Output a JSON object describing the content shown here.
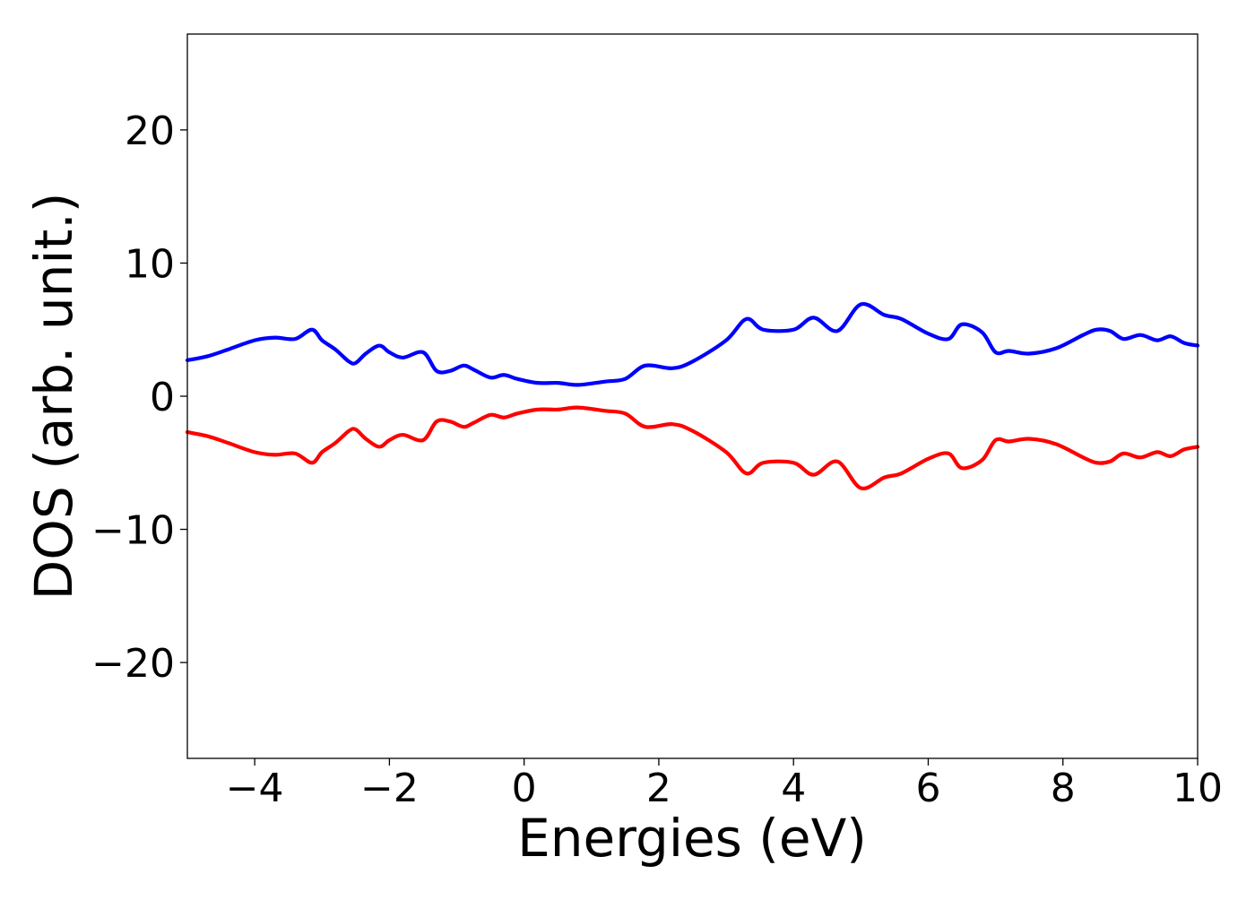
{
  "chart_data": {
    "type": "line",
    "xlabel": "Energies (eV)",
    "ylabel": "DOS (arb. unit.)",
    "xlim": [
      -5,
      10
    ],
    "ylim": [
      -27.2,
      27.2
    ],
    "xticks": [
      -4,
      -2,
      0,
      2,
      4,
      6,
      8,
      10
    ],
    "yticks": [
      -20,
      -10,
      0,
      10,
      20
    ],
    "xtick_labels": [
      "−4",
      "−2",
      "0",
      "2",
      "4",
      "6",
      "8",
      "10"
    ],
    "ytick_labels": [
      "−20",
      "−10",
      "0",
      "10",
      "20"
    ],
    "grid": false,
    "legend": "none",
    "series": [
      {
        "color": "#0000ff",
        "x": [
          -5.0,
          -4.7,
          -4.4,
          -4.0,
          -3.7,
          -3.4,
          -3.15,
          -3.0,
          -2.8,
          -2.6,
          -2.5,
          -2.35,
          -2.15,
          -2.0,
          -1.8,
          -1.5,
          -1.3,
          -1.1,
          -0.9,
          -0.75,
          -0.5,
          -0.3,
          -0.1,
          0.2,
          0.5,
          0.8,
          1.2,
          1.5,
          1.8,
          2.2,
          2.5,
          3.0,
          3.3,
          3.55,
          4.0,
          4.3,
          4.65,
          5.0,
          5.35,
          5.6,
          6.0,
          6.3,
          6.5,
          6.8,
          7.0,
          7.2,
          7.5,
          7.9,
          8.3,
          8.5,
          8.7,
          8.9,
          9.15,
          9.4,
          9.6,
          9.8,
          10.0
        ],
        "y": [
          2.7,
          3.0,
          3.5,
          4.2,
          4.4,
          4.3,
          5.0,
          4.2,
          3.5,
          2.6,
          2.5,
          3.2,
          3.8,
          3.3,
          2.9,
          3.3,
          1.9,
          1.9,
          2.3,
          2.0,
          1.4,
          1.6,
          1.3,
          1.0,
          1.0,
          0.85,
          1.1,
          1.3,
          2.3,
          2.1,
          2.6,
          4.2,
          5.8,
          5.0,
          5.0,
          5.9,
          4.9,
          6.9,
          6.1,
          5.8,
          4.7,
          4.3,
          5.4,
          4.8,
          3.3,
          3.4,
          3.2,
          3.6,
          4.6,
          5.0,
          4.9,
          4.3,
          4.6,
          4.2,
          4.5,
          4.0,
          3.8
        ]
      },
      {
        "color": "#ff0000",
        "x": [
          -5.0,
          -4.7,
          -4.4,
          -4.0,
          -3.7,
          -3.4,
          -3.15,
          -3.0,
          -2.8,
          -2.6,
          -2.5,
          -2.35,
          -2.15,
          -2.0,
          -1.8,
          -1.5,
          -1.3,
          -1.1,
          -0.9,
          -0.75,
          -0.5,
          -0.3,
          -0.1,
          0.2,
          0.5,
          0.8,
          1.2,
          1.5,
          1.8,
          2.2,
          2.5,
          3.0,
          3.3,
          3.55,
          4.0,
          4.3,
          4.65,
          5.0,
          5.35,
          5.6,
          6.0,
          6.3,
          6.5,
          6.8,
          7.0,
          7.2,
          7.5,
          7.9,
          8.3,
          8.5,
          8.7,
          8.9,
          9.15,
          9.4,
          9.6,
          9.8,
          10.0
        ],
        "y": [
          -2.7,
          -3.0,
          -3.5,
          -4.2,
          -4.4,
          -4.3,
          -5.0,
          -4.2,
          -3.5,
          -2.6,
          -2.5,
          -3.2,
          -3.8,
          -3.3,
          -2.9,
          -3.3,
          -1.9,
          -1.9,
          -2.3,
          -2.0,
          -1.4,
          -1.6,
          -1.3,
          -1.0,
          -1.0,
          -0.85,
          -1.1,
          -1.3,
          -2.3,
          -2.1,
          -2.6,
          -4.2,
          -5.8,
          -5.0,
          -5.0,
          -5.9,
          -4.9,
          -6.9,
          -6.1,
          -5.8,
          -4.7,
          -4.3,
          -5.4,
          -4.8,
          -3.3,
          -3.4,
          -3.2,
          -3.6,
          -4.6,
          -5.0,
          -4.9,
          -4.3,
          -4.6,
          -4.2,
          -4.5,
          -4.0,
          -3.8
        ]
      }
    ]
  }
}
